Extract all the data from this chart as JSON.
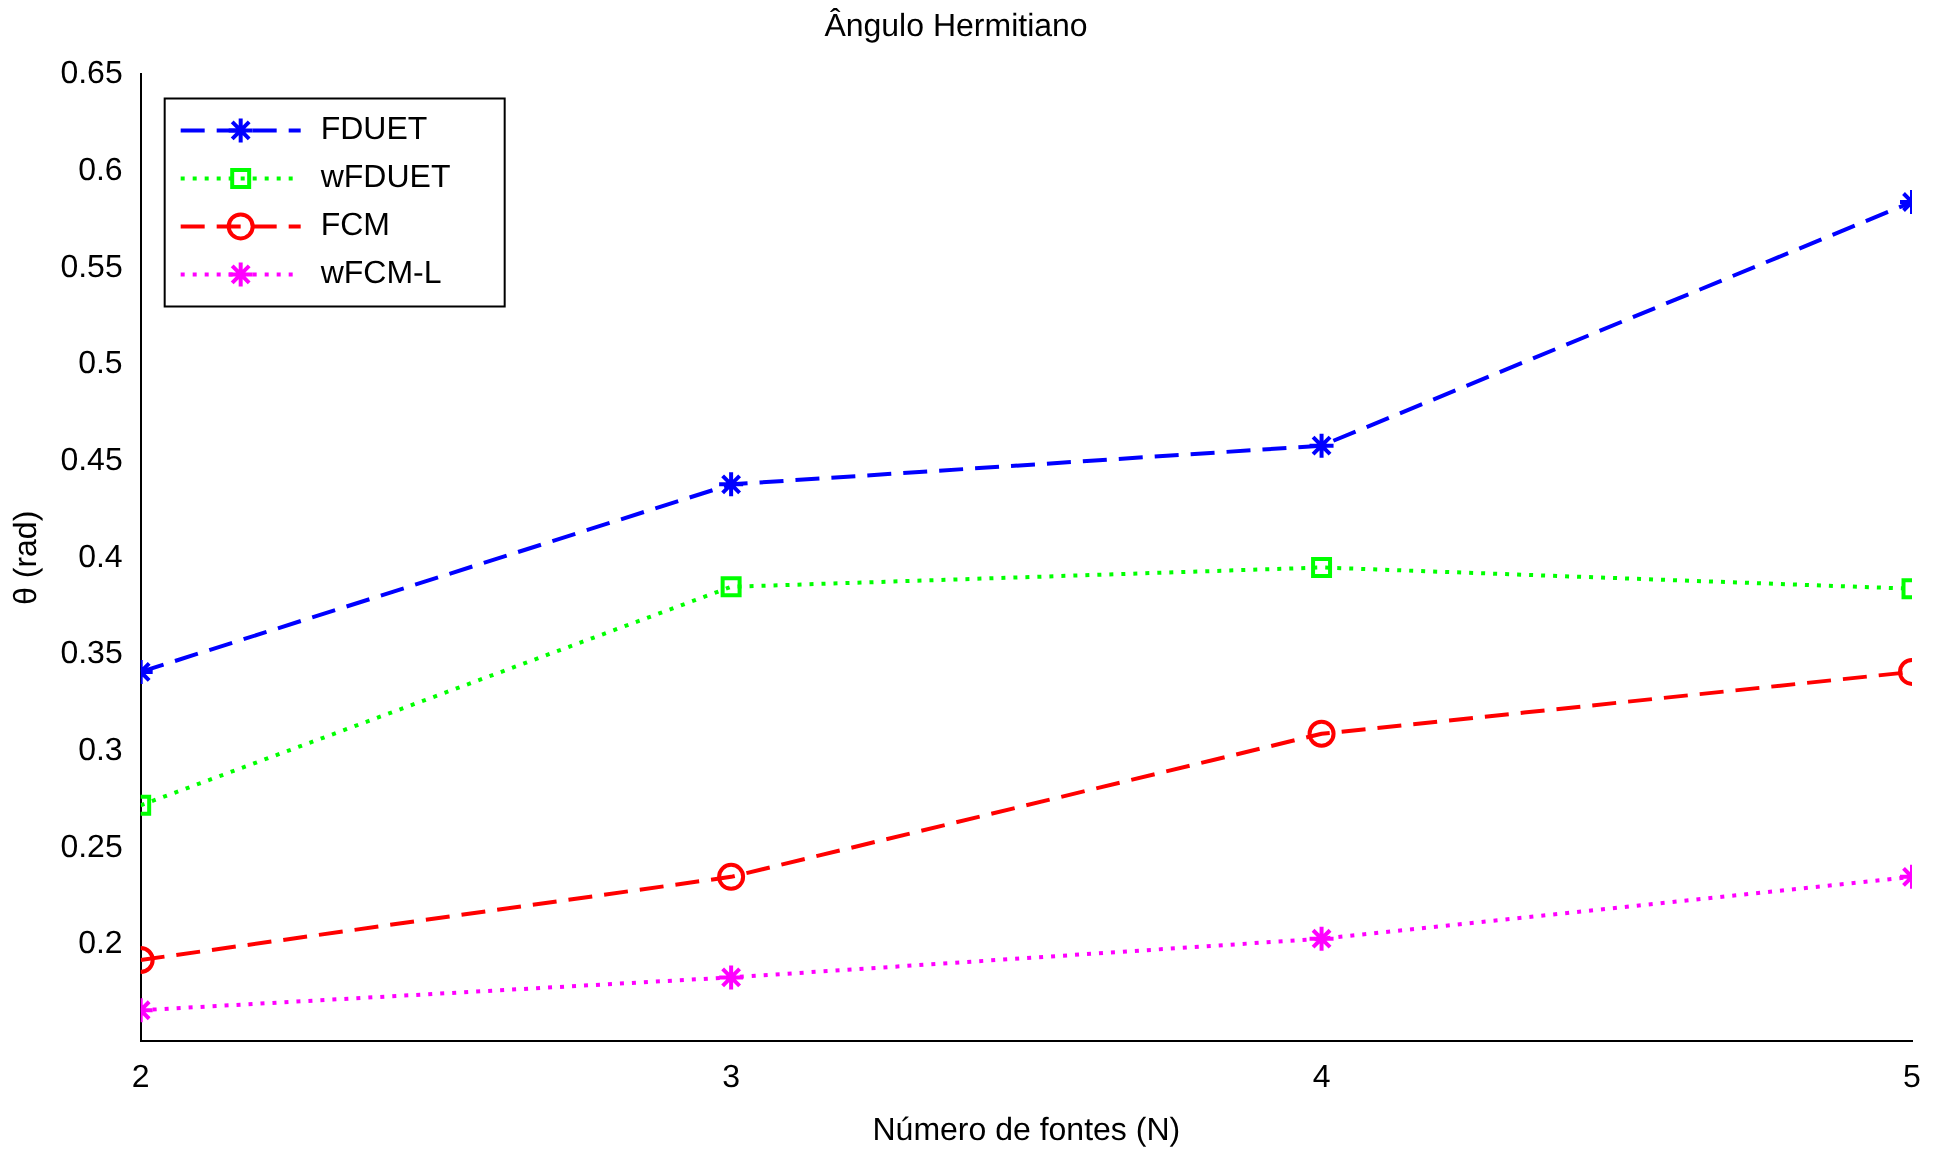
{
  "chart_data": {
    "type": "line",
    "title": "Ângulo Hermitiano",
    "xlabel": "Número de fontes (N)",
    "ylabel": "θ (rad)",
    "x": [
      2,
      3,
      4,
      5
    ],
    "xlim": [
      2,
      5
    ],
    "xticks": [
      2,
      3,
      4,
      5
    ],
    "ylim": [
      0.15,
      0.65
    ],
    "yticks": [
      0.2,
      0.25,
      0.3,
      0.35,
      0.4,
      0.45,
      0.5,
      0.55,
      0.6,
      0.65
    ],
    "grid": false,
    "legend": "top left",
    "series": [
      {
        "name": "FDUET",
        "color": "#0000ff",
        "values": [
          0.341,
          0.438,
          0.458,
          0.584
        ],
        "marker": "cross",
        "line_style": "dashed"
      },
      {
        "name": "wFDUET",
        "color": "#00ff00",
        "values": [
          0.272,
          0.385,
          0.395,
          0.384
        ],
        "marker": "square",
        "line_style": "dotted"
      },
      {
        "name": "FCM",
        "color": "#ff0000",
        "values": [
          0.192,
          0.235,
          0.309,
          0.341
        ],
        "marker": "circle",
        "line_style": "dashed"
      },
      {
        "name": "wFCM-L",
        "color": "#ff00ff",
        "values": [
          0.166,
          0.183,
          0.203,
          0.235
        ],
        "marker": "cross",
        "line_style": "dotted"
      }
    ]
  }
}
